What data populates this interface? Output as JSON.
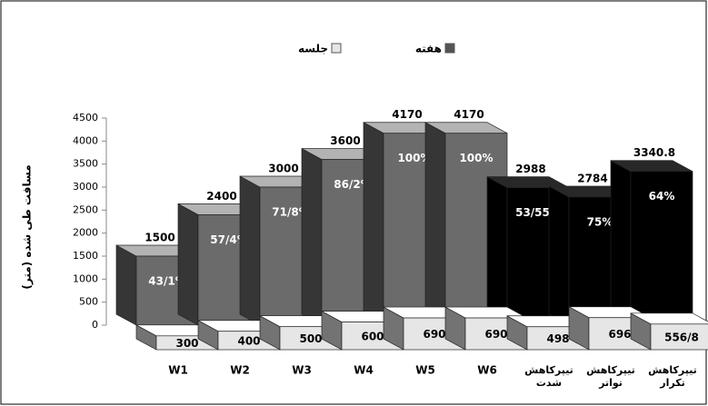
{
  "chart_data": {
    "type": "bar3d",
    "categories": [
      "W1",
      "W2",
      "W3",
      "W4",
      "W5",
      "W6",
      "تیپرکاهش شدت",
      "تیپرکاهش تواتر",
      "تیپرکاهش تکرار"
    ],
    "series": [
      {
        "name": "هفته",
        "color": "#555555",
        "colors": [
          "#6b6b6b",
          "#6b6b6b",
          "#6b6b6b",
          "#6b6b6b",
          "#6b6b6b",
          "#6b6b6b",
          "#000000",
          "#000000",
          "#000000"
        ],
        "values": [
          1500,
          2400,
          3000,
          3600,
          4170,
          4170,
          2988,
          2784,
          3340.8
        ],
        "annotations": [
          "43/1%",
          "57/4%",
          "71/8%",
          "86/2%",
          "100%",
          "100%",
          "53/55%",
          "75%",
          "64%"
        ]
      },
      {
        "name": "جلسه",
        "color": "#e6e6e6",
        "values": [
          300,
          400,
          500,
          600,
          690,
          690,
          498,
          696,
          556.8
        ],
        "value_labels": [
          "300",
          "400",
          "500",
          "600",
          "690",
          "690",
          "498",
          "696",
          "556/8"
        ]
      }
    ],
    "y_label": "مسافت طی شده (متر)",
    "ylim": [
      0,
      4500
    ],
    "yticks": [
      0,
      500,
      1000,
      1500,
      2000,
      2500,
      3000,
      3500,
      4000,
      4500
    ]
  }
}
